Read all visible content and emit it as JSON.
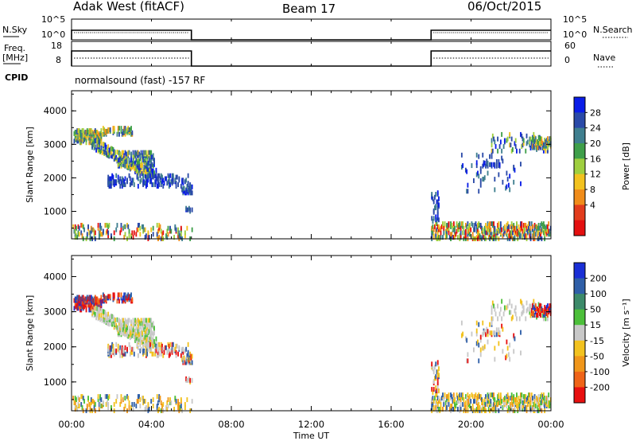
{
  "header": {
    "radar": "Adak West (fitACF)",
    "beam": "Beam 17",
    "date": "06/Oct/2015"
  },
  "top_panels": {
    "nsky_label": "N.Sky",
    "nsky_ticks": [
      "10^5",
      "10^0"
    ],
    "nsearch_label": "N.Search",
    "nsearch_ticks": [
      "10^5",
      "10^0"
    ],
    "freq_label_1": "Freq.",
    "freq_label_2": "[MHz]",
    "freq_ticks": [
      "18",
      "8"
    ],
    "nave_label": "Nave",
    "nave_ticks": [
      "60",
      "0"
    ],
    "cpid_label": "CPID",
    "cpid_text": "normalsound (fast) -157 RF"
  },
  "chart_data": [
    {
      "type": "heatmap",
      "name": "power",
      "ylabel": "Slant Range [km]",
      "xlabel": "",
      "yticks": [
        "1000",
        "2000",
        "3000",
        "4000"
      ],
      "ylim": [
        180,
        4600
      ],
      "xlim": [
        0,
        24
      ],
      "colorbar_label": "Power [dB]",
      "colorbar_ticks": [
        "4",
        "8",
        "12",
        "16",
        "20",
        "24",
        "28"
      ],
      "colorbar_colors": [
        "#0a1de8",
        "#2a4aa8",
        "#3f7f8f",
        "#3f9f4a",
        "#9fcf3f",
        "#f2c21f",
        "#f08c1a",
        "#e23c1c",
        "#e41010"
      ]
    },
    {
      "type": "heatmap",
      "name": "velocity",
      "ylabel": "Slant Range [km]",
      "xlabel": "Time UT",
      "yticks": [
        "1000",
        "2000",
        "3000",
        "4000"
      ],
      "xticks": [
        "00:00",
        "04:00",
        "08:00",
        "12:00",
        "16:00",
        "20:00",
        "00:00"
      ],
      "ylim": [
        180,
        4600
      ],
      "xlim": [
        0,
        24
      ],
      "colorbar_label": "Velocity [m s⁻¹]",
      "colorbar_ticks": [
        "200",
        "100",
        "50",
        "15",
        "-15",
        "-50",
        "-100",
        "-200"
      ],
      "colorbar_colors": [
        "#1a2fd6",
        "#2f5fa8",
        "#3c8a6a",
        "#4cbf3a",
        "#c8c8c8",
        "#f2c21f",
        "#f0961a",
        "#ef6418",
        "#e81010"
      ]
    }
  ]
}
